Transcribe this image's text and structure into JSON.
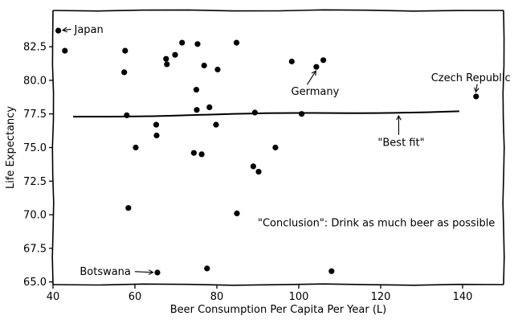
{
  "chart_data": {
    "type": "scatter",
    "title": "",
    "xlabel": "Beer Consumption Per Capita Per Year (L)",
    "ylabel": "Life Expectancy",
    "xlim": [
      40,
      150
    ],
    "ylim": [
      64.8,
      85.2
    ],
    "x_ticks": [
      40,
      60,
      80,
      100,
      120,
      140
    ],
    "x_tick_labels": [
      "40",
      "60",
      "80",
      "100",
      "120",
      "140"
    ],
    "y_ticks": [
      65.0,
      67.5,
      70.0,
      72.5,
      75.0,
      77.5,
      80.0,
      82.5
    ],
    "y_tick_labels": [
      "65.0",
      "67.5",
      "70.0",
      "72.5",
      "75.0",
      "77.5",
      "80.0",
      "82.5"
    ],
    "grid": false,
    "points": [
      {
        "x": 41.3,
        "y": 83.7
      },
      {
        "x": 42.9,
        "y": 82.2
      },
      {
        "x": 57.6,
        "y": 82.2
      },
      {
        "x": 57.4,
        "y": 80.6
      },
      {
        "x": 58.0,
        "y": 77.4
      },
      {
        "x": 58.4,
        "y": 70.5
      },
      {
        "x": 60.2,
        "y": 75.0
      },
      {
        "x": 65.2,
        "y": 76.7
      },
      {
        "x": 65.3,
        "y": 75.9
      },
      {
        "x": 65.5,
        "y": 65.7
      },
      {
        "x": 67.6,
        "y": 81.6
      },
      {
        "x": 67.8,
        "y": 81.2
      },
      {
        "x": 69.8,
        "y": 81.9
      },
      {
        "x": 71.5,
        "y": 82.8
      },
      {
        "x": 74.4,
        "y": 74.6
      },
      {
        "x": 75.0,
        "y": 79.3
      },
      {
        "x": 75.1,
        "y": 77.8
      },
      {
        "x": 75.3,
        "y": 82.7
      },
      {
        "x": 76.3,
        "y": 74.5
      },
      {
        "x": 76.9,
        "y": 81.1
      },
      {
        "x": 77.6,
        "y": 66.0
      },
      {
        "x": 78.2,
        "y": 78.0
      },
      {
        "x": 79.8,
        "y": 76.7
      },
      {
        "x": 80.2,
        "y": 80.8
      },
      {
        "x": 84.8,
        "y": 82.8
      },
      {
        "x": 84.9,
        "y": 70.1
      },
      {
        "x": 88.9,
        "y": 73.6
      },
      {
        "x": 89.3,
        "y": 77.6
      },
      {
        "x": 90.2,
        "y": 73.2
      },
      {
        "x": 94.3,
        "y": 75.0
      },
      {
        "x": 98.3,
        "y": 81.4
      },
      {
        "x": 100.7,
        "y": 77.5
      },
      {
        "x": 104.3,
        "y": 81.0
      },
      {
        "x": 106.0,
        "y": 81.5
      },
      {
        "x": 108.0,
        "y": 65.8
      },
      {
        "x": 143.3,
        "y": 78.8
      }
    ],
    "series": [
      {
        "values": [
          [
            44.9,
            77.3
          ],
          [
            139.2,
            77.7
          ]
        ]
      }
    ],
    "annotations": [
      {
        "text": "Japan",
        "x": 45.2,
        "y": 83.8,
        "target": {
          "x": 41.6,
          "y": 83.7
        }
      },
      {
        "text": "Germany",
        "x": 104.0,
        "y": 79.2,
        "target": {
          "x": 104.6,
          "y": 80.9
        }
      },
      {
        "text": "Czech Republic",
        "x": 142.0,
        "y": 80.2,
        "target": {
          "x": 143.1,
          "y": 78.9
        }
      },
      {
        "text": "\"Best fit\"",
        "x": 125.0,
        "y": 75.4,
        "target": {
          "x": 124.4,
          "y": 77.6
        }
      },
      {
        "text": "Botswana",
        "x": 59.0,
        "y": 65.8,
        "target": {
          "x": 65.2,
          "y": 65.7
        }
      },
      {
        "text": "\"Conclusion\": Drink as much beer as possible",
        "x": 90.0,
        "y": 69.4
      }
    ]
  }
}
